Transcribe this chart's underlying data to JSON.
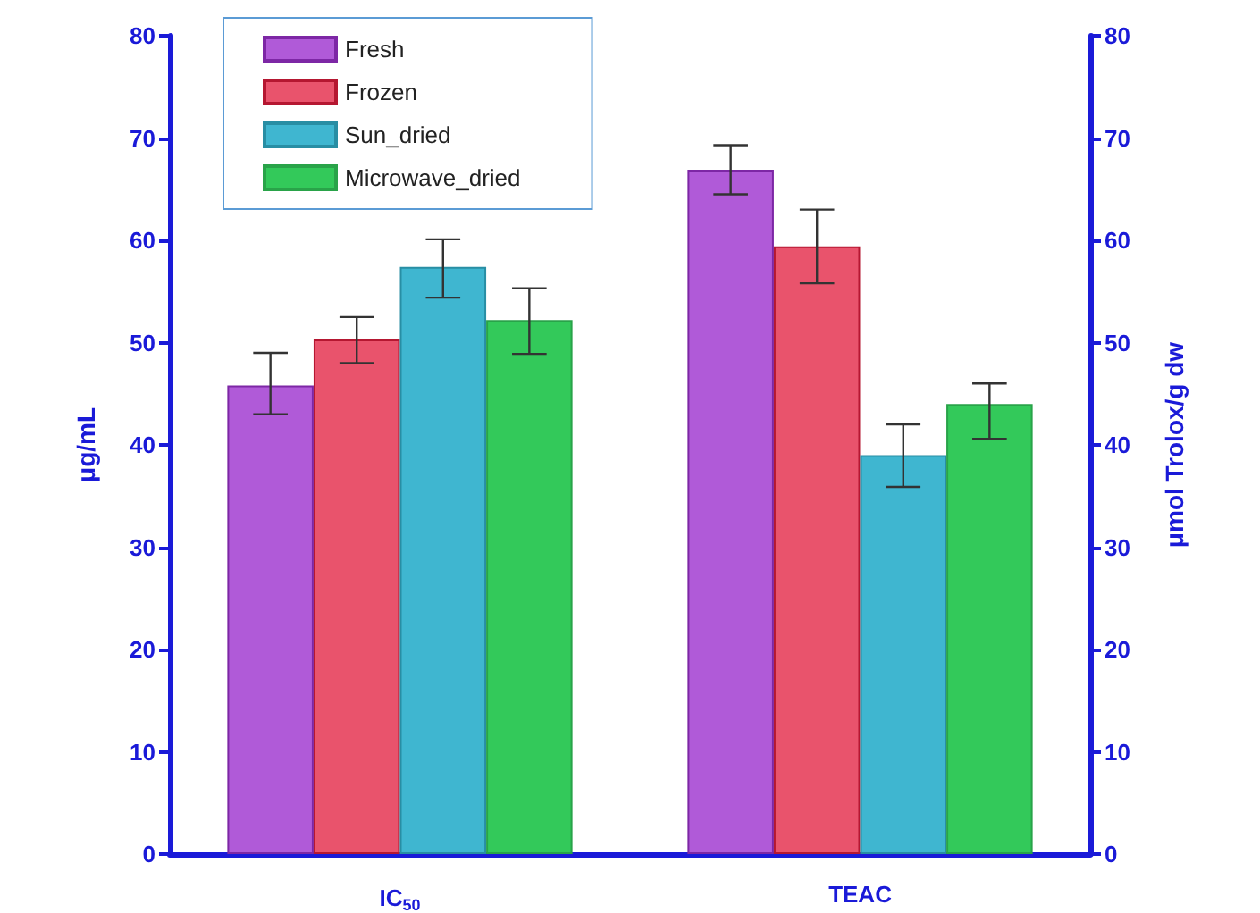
{
  "chart_data": {
    "type": "bar",
    "ylabel": "μg/mL",
    "y2label": "μmol Trolox/g dw",
    "categories": [
      "IC$_{50}$",
      "TEAC"
    ],
    "series": [
      {
        "name": "Fresh",
        "color": "#b05ad8",
        "values": [
          45.8,
          66.9
        ],
        "errors": [
          [
            43,
            49
          ],
          [
            64.5,
            69.3
          ]
        ]
      },
      {
        "name": "Frozen",
        "color": "#e9536c",
        "values": [
          50.3,
          59.4
        ],
        "errors": [
          [
            48,
            52.5
          ],
          [
            55.8,
            63
          ]
        ]
      },
      {
        "name": "Sun_dried",
        "color": "#3fb6d0",
        "values": [
          57.4,
          39
        ],
        "errors": [
          [
            54.4,
            60.1
          ],
          [
            35.9,
            42
          ]
        ]
      },
      {
        "name": "Microwave_dried",
        "color": "#33c95a",
        "values": [
          52.2,
          44
        ],
        "errors": [
          [
            48.9,
            55.3
          ],
          [
            40.6,
            46
          ]
        ]
      }
    ],
    "ylim": [
      0,
      80
    ],
    "yticks": [
      0,
      10,
      20,
      30,
      40,
      50,
      60,
      70,
      80
    ],
    "y2lim": [
      0,
      80
    ],
    "y2ticks": [
      0,
      10,
      20,
      30,
      40,
      50,
      60,
      70,
      80
    ],
    "grid": false,
    "legend": "top left"
  }
}
